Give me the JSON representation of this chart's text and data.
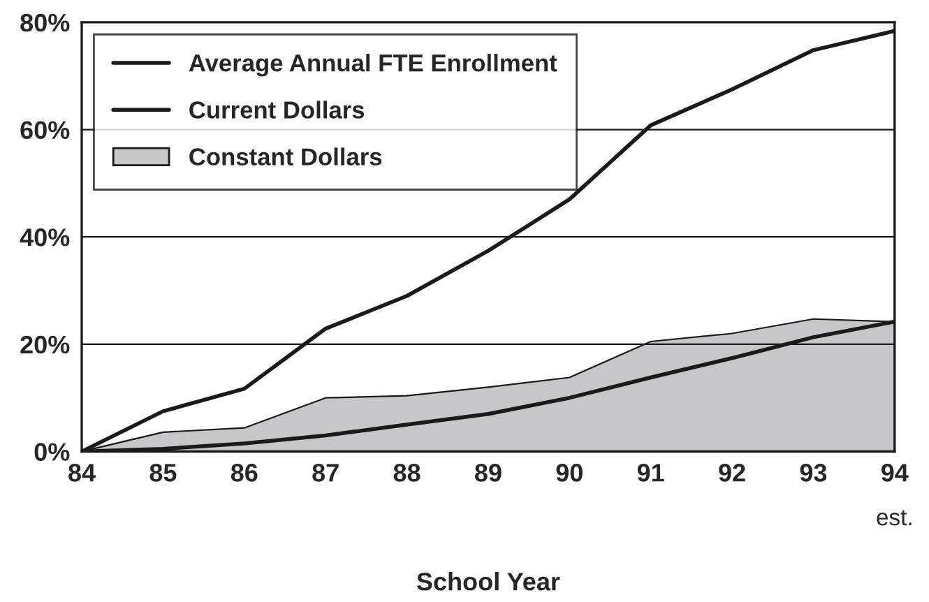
{
  "chart_data": {
    "type": "line",
    "xlabel": "School Year",
    "x": [
      84,
      85,
      86,
      87,
      88,
      89,
      90,
      91,
      92,
      93,
      94
    ],
    "series": [
      {
        "name": "Average Annual FTE Enrollment",
        "color": "#1a1a1a",
        "values": [
          0,
          0.5,
          1.5,
          3,
          5,
          7,
          10,
          13.8,
          17.4,
          21.3,
          24.2
        ]
      },
      {
        "name": "Current Dollars",
        "color": "#1a1a1a",
        "values": [
          0,
          7.5,
          11.7,
          22.9,
          29,
          37.4,
          47,
          60.8,
          67.5,
          74.8,
          78.4
        ]
      },
      {
        "name": "Constant Dollars",
        "type": "area",
        "color": "#c6c7c9",
        "values": [
          0,
          3.6,
          4.4,
          10,
          10.4,
          12,
          13.8,
          20.5,
          22,
          24.7,
          24.2
        ]
      }
    ],
    "xlim": [
      84,
      94
    ],
    "xticks": [
      84,
      85,
      86,
      87,
      88,
      89,
      90,
      91,
      92,
      93,
      94
    ],
    "ylim": [
      0,
      80
    ],
    "yticks": [
      {
        "value": 0,
        "label": "0%"
      },
      {
        "value": 20,
        "label": "20%"
      },
      {
        "value": 40,
        "label": "40%"
      },
      {
        "value": 60,
        "label": "60%"
      },
      {
        "value": 80,
        "label": "80%"
      }
    ],
    "annotations": [
      {
        "text": "est.",
        "x": 94,
        "y": 0
      }
    ],
    "grid": "y",
    "legend": "top left"
  }
}
